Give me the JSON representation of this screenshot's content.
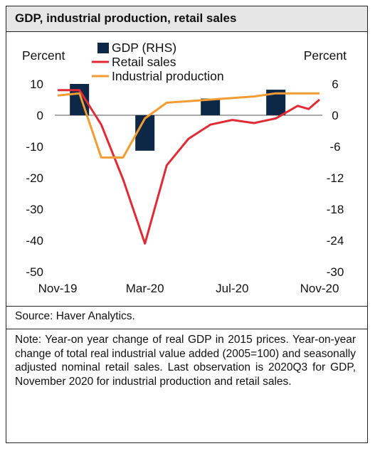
{
  "title": "GDP, industrial production, retail sales",
  "source": "Source: Haver Analytics.",
  "note": "Note: Year-on year change of real GDP in 2015 prices. Year-on-year change of total real industrial value added (2005=100) and seasonally adjusted nominal retail sales. Last observation is 2020Q3 for GDP, November 2020 for industrial production and retail sales.",
  "chart_data": {
    "type": "bar+line",
    "left_axis": {
      "label": "Percent",
      "ylim": [
        -50,
        10
      ],
      "ticks": [
        10,
        0,
        -10,
        -20,
        -30,
        -40,
        -50
      ]
    },
    "right_axis": {
      "label": "Percent",
      "ylim": [
        -30,
        6
      ],
      "ticks": [
        6,
        0,
        -6,
        -12,
        -18,
        -24,
        -30
      ]
    },
    "x_tick_labels": [
      "Nov-19",
      "Mar-20",
      "Jul-20",
      "Nov-20"
    ],
    "x_months": [
      "2019-11",
      "2019-12",
      "2020-01",
      "2020-02",
      "2020-03",
      "2020-04",
      "2020-05",
      "2020-06",
      "2020-07",
      "2020-08",
      "2020-09",
      "2020-10",
      "2020-11"
    ],
    "legend": [
      "GDP (RHS)",
      "Retail sales",
      "Industrial production"
    ],
    "series": [
      {
        "name": "GDP (RHS)",
        "kind": "bar",
        "axis": "right",
        "color": "#0d2847",
        "points": [
          {
            "x": "2019-12",
            "y": 6.0
          },
          {
            "x": "2020-03",
            "y": -6.8
          },
          {
            "x": "2020-06",
            "y": 3.2
          },
          {
            "x": "2020-09",
            "y": 4.9
          }
        ]
      },
      {
        "name": "Retail sales",
        "kind": "line",
        "axis": "left",
        "color": "#e02b35",
        "values": [
          8.0,
          8.0,
          -3.0,
          -20.5,
          -41.0,
          -16.0,
          -7.5,
          -3.0,
          -1.5,
          -2.5,
          -1.0,
          3.0,
          2.0,
          5.0
        ],
        "x": [
          "2019-11",
          "2019-12",
          "2020-01",
          "2020-02",
          "2020-03",
          "2020-04",
          "2020-05",
          "2020-06",
          "2020-07",
          "2020-08",
          "2020-09",
          "2020-10",
          "2020-10",
          "2020-11"
        ]
      },
      {
        "name": "Industrial production",
        "kind": "line",
        "axis": "left",
        "color": "#f39c33",
        "values": [
          6.3,
          7.0,
          -13.5,
          -13.5,
          -1.0,
          4.0,
          4.5,
          5.0,
          6.0,
          7.0,
          7.0,
          7.0
        ],
        "x": [
          "2019-11",
          "2019-12",
          "2020-01",
          "2020-02",
          "2020-03",
          "2020-04",
          "2020-05",
          "2020-06",
          "2020-08",
          "2020-09",
          "2020-10",
          "2020-11"
        ]
      }
    ]
  }
}
